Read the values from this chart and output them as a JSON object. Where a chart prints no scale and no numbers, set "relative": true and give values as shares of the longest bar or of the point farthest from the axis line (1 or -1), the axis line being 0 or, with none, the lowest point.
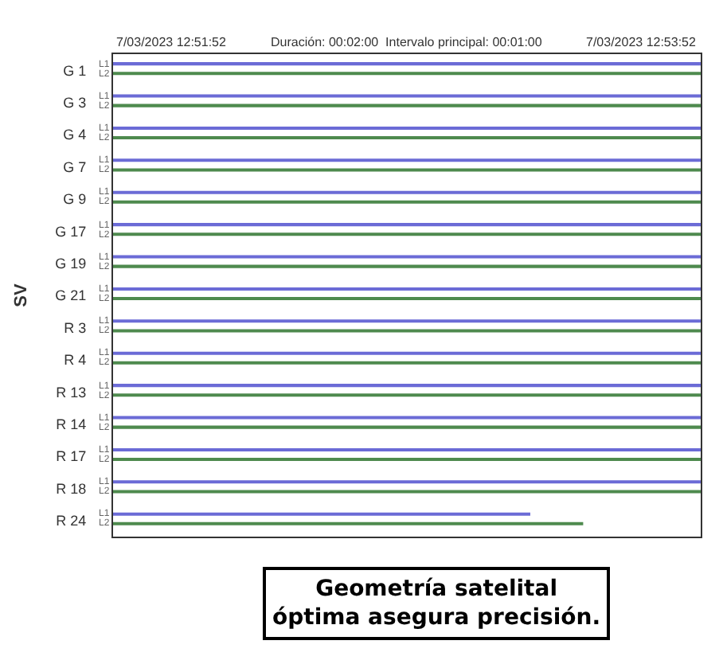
{
  "chart_data": {
    "type": "bar",
    "orientation": "horizontal",
    "relative": true,
    "ylabel": "SV",
    "categories": [
      "G 1",
      "G 3",
      "G 4",
      "G 7",
      "G 9",
      "G 17",
      "G 19",
      "G 21",
      "R 3",
      "R 4",
      "R 13",
      "R 14",
      "R 17",
      "R 18",
      "R 24"
    ],
    "series": [
      {
        "name": "L1",
        "color": "#6b6bd6",
        "values": [
          1,
          1,
          1,
          1,
          1,
          1,
          1,
          1,
          1,
          1,
          1,
          1,
          1,
          1,
          0.71
        ]
      },
      {
        "name": "L2",
        "color": "#4e8a4e",
        "values": [
          1,
          1,
          1,
          1,
          1,
          1,
          1,
          1,
          1,
          1,
          1,
          1,
          1,
          1,
          0.8
        ]
      }
    ],
    "annotations": [
      "7/03/2023 12:51:52",
      "Duración: 00:02:00  Intervalo principal: 00:01:00",
      "7/03/2023 12:53:52",
      "Geometría satelital óptima asegura precisión."
    ],
    "legend": false
  }
}
